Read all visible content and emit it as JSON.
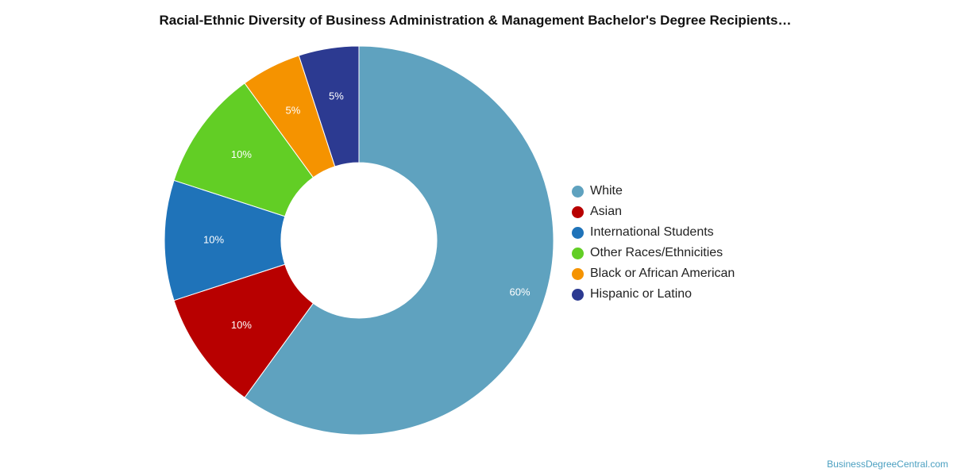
{
  "chart_data": {
    "type": "pie",
    "title": "Racial-Ethnic Diversity of Business Administration & Management Bachelor's Degree Recipients…",
    "donut": true,
    "categories": [
      "White",
      "Asian",
      "International Students",
      "Other Races/Ethnicities",
      "Black or African American",
      "Hispanic or Latino"
    ],
    "values": [
      60,
      10,
      10,
      10,
      5,
      5
    ],
    "labels": [
      "60%",
      "10%",
      "10%",
      "10%",
      "5%",
      "5%"
    ],
    "colors": [
      "#5fa2bf",
      "#b80000",
      "#1f73b9",
      "#62ce25",
      "#f59300",
      "#2c3a91"
    ],
    "legend_position": "right"
  },
  "credit": "BusinessDegreeCentral.com"
}
